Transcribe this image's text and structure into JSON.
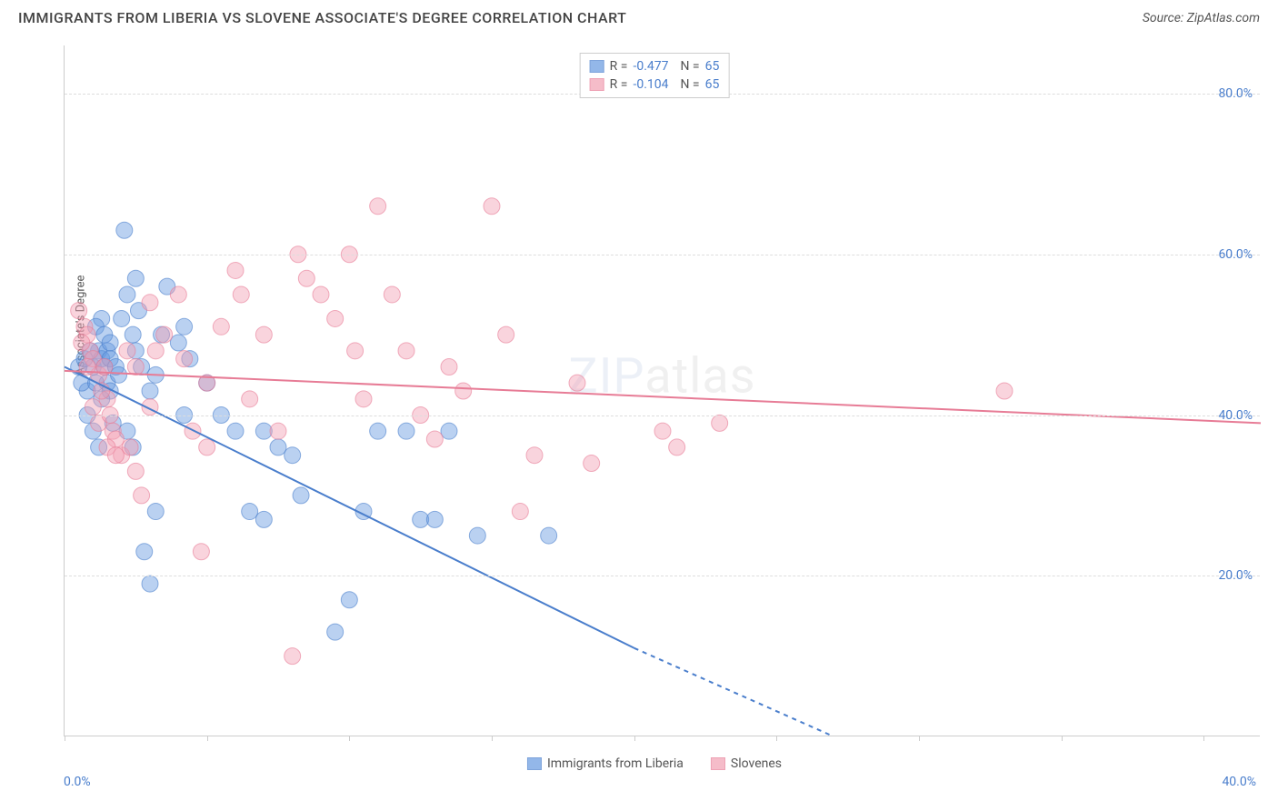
{
  "title": "IMMIGRANTS FROM LIBERIA VS SLOVENE ASSOCIATE'S DEGREE CORRELATION CHART",
  "source_label": "Source: ZipAtlas.com",
  "y_axis_label": "Associate's Degree",
  "watermark_zip": "ZIP",
  "watermark_atlas": "atlas",
  "chart": {
    "type": "scatter",
    "background_color": "#ffffff",
    "grid_color": "#dddddd",
    "axis_color": "#cccccc",
    "xlim": [
      0,
      42
    ],
    "ylim": [
      0,
      86
    ],
    "y_ticks": [
      20,
      40,
      60,
      80
    ],
    "y_tick_labels": [
      "20.0%",
      "40.0%",
      "60.0%",
      "80.0%"
    ],
    "x_ticks": [
      0,
      5,
      10,
      15,
      20,
      25,
      30,
      35,
      40
    ],
    "x_start_label": "0.0%",
    "x_end_label": "40.0%",
    "marker_radius": 9,
    "marker_opacity": 0.45,
    "line_width": 2,
    "series": [
      {
        "name": "Immigrants from Liberia",
        "color": "#6699e0",
        "border": "#4a7ecc",
        "R": "-0.477",
        "N": "65",
        "trend": {
          "x1": 0,
          "y1": 46,
          "x2": 20,
          "y2": 11,
          "dash_from_x": 20,
          "dash_to_x": 27,
          "dash_to_y": 0
        },
        "points": [
          [
            1.0,
            46
          ],
          [
            1.2,
            48
          ],
          [
            1.3,
            47
          ],
          [
            1.4,
            46
          ],
          [
            1.5,
            44
          ],
          [
            1.5,
            48
          ],
          [
            1.6,
            47
          ],
          [
            0.8,
            43
          ],
          [
            0.8,
            40
          ],
          [
            1.0,
            38
          ],
          [
            1.2,
            36
          ],
          [
            1.3,
            52
          ],
          [
            2.0,
            52
          ],
          [
            2.1,
            63
          ],
          [
            2.2,
            55
          ],
          [
            2.4,
            50
          ],
          [
            2.5,
            48
          ],
          [
            2.5,
            57
          ],
          [
            2.6,
            53
          ],
          [
            3.0,
            43
          ],
          [
            3.2,
            45
          ],
          [
            3.4,
            50
          ],
          [
            3.6,
            56
          ],
          [
            4.0,
            49
          ],
          [
            4.2,
            51
          ],
          [
            4.2,
            40
          ],
          [
            4.4,
            47
          ],
          [
            5.0,
            44
          ],
          [
            5.5,
            40
          ],
          [
            6.0,
            38
          ],
          [
            6.5,
            28
          ],
          [
            7.0,
            27
          ],
          [
            7.0,
            38
          ],
          [
            7.5,
            36
          ],
          [
            8.0,
            35
          ],
          [
            8.3,
            30
          ],
          [
            9.5,
            13
          ],
          [
            10.0,
            17
          ],
          [
            10.5,
            28
          ],
          [
            11.0,
            38
          ],
          [
            12.0,
            38
          ],
          [
            12.5,
            27
          ],
          [
            13.0,
            27
          ],
          [
            13.5,
            38
          ],
          [
            14.5,
            25
          ],
          [
            17.0,
            25
          ],
          [
            2.8,
            23
          ],
          [
            3.0,
            19
          ],
          [
            3.2,
            28
          ],
          [
            0.5,
            46
          ],
          [
            0.6,
            44
          ],
          [
            1.8,
            46
          ],
          [
            1.9,
            45
          ],
          [
            1.1,
            51
          ],
          [
            1.4,
            50
          ],
          [
            1.6,
            49
          ],
          [
            0.7,
            47
          ],
          [
            0.9,
            48
          ],
          [
            1.1,
            44
          ],
          [
            1.6,
            43
          ],
          [
            1.3,
            42
          ],
          [
            2.2,
            38
          ],
          [
            2.4,
            36
          ],
          [
            2.7,
            46
          ],
          [
            1.7,
            39
          ]
        ]
      },
      {
        "name": "Slovenes",
        "color": "#f2a0b3",
        "border": "#e77c96",
        "R": "-0.104",
        "N": "65",
        "trend": {
          "x1": 0,
          "y1": 45.5,
          "x2": 42,
          "y2": 39
        },
        "points": [
          [
            0.5,
            53
          ],
          [
            0.7,
            51
          ],
          [
            0.8,
            50
          ],
          [
            0.9,
            48
          ],
          [
            1.0,
            47
          ],
          [
            1.2,
            45
          ],
          [
            1.4,
            46
          ],
          [
            1.5,
            42
          ],
          [
            1.7,
            38
          ],
          [
            1.8,
            37
          ],
          [
            2.0,
            35
          ],
          [
            2.3,
            36
          ],
          [
            2.5,
            33
          ],
          [
            2.7,
            30
          ],
          [
            3.0,
            54
          ],
          [
            3.2,
            48
          ],
          [
            3.5,
            50
          ],
          [
            4.0,
            55
          ],
          [
            4.2,
            47
          ],
          [
            4.5,
            38
          ],
          [
            5.0,
            36
          ],
          [
            5.5,
            51
          ],
          [
            6.0,
            58
          ],
          [
            6.2,
            55
          ],
          [
            7.0,
            50
          ],
          [
            7.5,
            38
          ],
          [
            8.0,
            10
          ],
          [
            8.2,
            60
          ],
          [
            8.5,
            57
          ],
          [
            9.0,
            55
          ],
          [
            9.5,
            52
          ],
          [
            10.0,
            60
          ],
          [
            10.2,
            48
          ],
          [
            10.5,
            42
          ],
          [
            11.0,
            66
          ],
          [
            11.5,
            55
          ],
          [
            12.0,
            48
          ],
          [
            12.5,
            40
          ],
          [
            13.0,
            37
          ],
          [
            13.5,
            46
          ],
          [
            14.0,
            43
          ],
          [
            15.0,
            66
          ],
          [
            15.5,
            50
          ],
          [
            16.0,
            28
          ],
          [
            16.5,
            35
          ],
          [
            18.0,
            44
          ],
          [
            18.5,
            34
          ],
          [
            21.0,
            38
          ],
          [
            21.5,
            36
          ],
          [
            23.0,
            39
          ],
          [
            33.0,
            43
          ],
          [
            1.0,
            41
          ],
          [
            1.2,
            39
          ],
          [
            1.5,
            36
          ],
          [
            1.8,
            35
          ],
          [
            2.2,
            48
          ],
          [
            2.5,
            46
          ],
          [
            3.0,
            41
          ],
          [
            4.8,
            23
          ],
          [
            5.0,
            44
          ],
          [
            6.5,
            42
          ],
          [
            0.6,
            49
          ],
          [
            0.8,
            46
          ],
          [
            1.3,
            43
          ],
          [
            1.6,
            40
          ]
        ]
      }
    ]
  },
  "tick_label_color": "#4a7ecc",
  "text_color": "#555555"
}
